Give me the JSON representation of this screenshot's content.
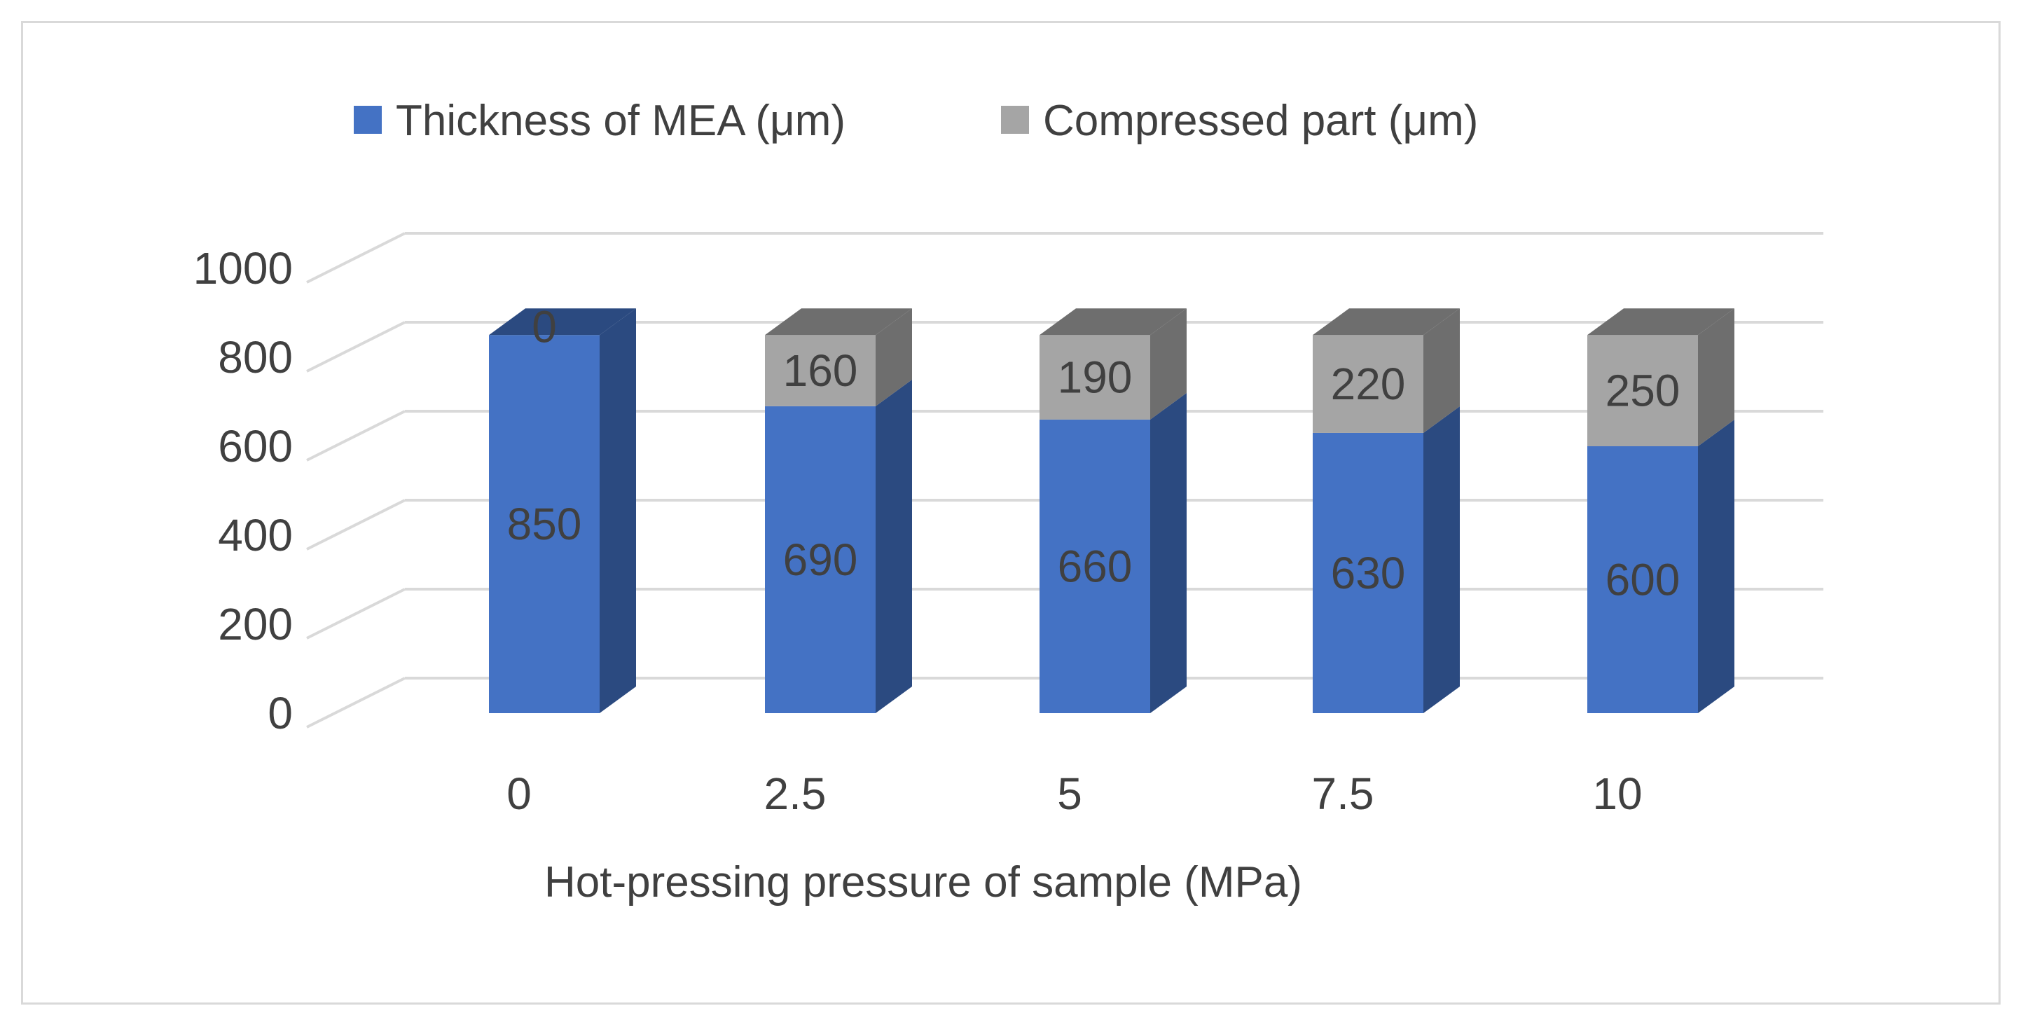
{
  "chart_data": {
    "type": "bar",
    "stacked": true,
    "style": "3d-column",
    "title": "",
    "xlabel": "Hot-pressing pressure of sample (MPa)",
    "ylabel": "",
    "categories": [
      "0",
      "2.5",
      "5",
      "7.5",
      "10"
    ],
    "series": [
      {
        "name": "Thickness of MEA (μm)",
        "values": [
          850,
          690,
          660,
          630,
          600
        ],
        "color": "#4472c4",
        "side_color": "#2b4a80",
        "top_color": "#3a62a8"
      },
      {
        "name": "Compressed part (μm)",
        "values": [
          0,
          160,
          190,
          220,
          250
        ],
        "color": "#a5a5a5",
        "side_color": "#6e6e6e",
        "top_color": "#7a7a7a"
      }
    ],
    "yticks": [
      "0",
      "200",
      "400",
      "600",
      "800",
      "1000"
    ],
    "ylim": [
      0,
      1000
    ],
    "grid": true,
    "legend_position": "top",
    "gridline_color": "#d9d9d9",
    "text_color": "#404040"
  }
}
